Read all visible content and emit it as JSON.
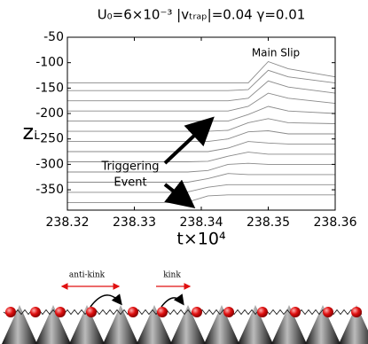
{
  "chart_data": {
    "type": "line",
    "title": "U₀=6×10⁻³   |vₜᵣₐₚ|=0.04   γ=0.01",
    "x_label": "t×10⁴",
    "y_label": "zᵢ",
    "annotations": [
      "Main Slip",
      "Triggering",
      "Event"
    ],
    "color": "#8a8a8a",
    "x": [
      238.32,
      238.335,
      238.338,
      238.341,
      238.344,
      238.347,
      238.35,
      238.353,
      238.36
    ],
    "series": [
      {
        "values": [
          -375,
          -375,
          -374,
          -362,
          -360,
          -360,
          -360,
          -360,
          -360
        ]
      },
      {
        "values": [
          -355,
          -355,
          -354,
          -345,
          -340,
          -340,
          -340,
          -340,
          -340
        ]
      },
      {
        "values": [
          -335,
          -335,
          -335,
          -328,
          -318,
          -320,
          -320,
          -320,
          -320
        ]
      },
      {
        "values": [
          -315,
          -315,
          -315,
          -312,
          -300,
          -298,
          -300,
          -300,
          -300
        ]
      },
      {
        "values": [
          -295,
          -295,
          -295,
          -294,
          -284,
          -276,
          -280,
          -280,
          -280
        ]
      },
      {
        "values": [
          -275,
          -275,
          -275,
          -275,
          -268,
          -255,
          -258,
          -260,
          -260
        ]
      },
      {
        "values": [
          -255,
          -255,
          -255,
          -255,
          -250,
          -236,
          -234,
          -240,
          -240
        ]
      },
      {
        "values": [
          -235,
          -235,
          -235,
          -235,
          -233,
          -218,
          -210,
          -218,
          -220
        ]
      },
      {
        "values": [
          -215,
          -215,
          -215,
          -215,
          -215,
          -202,
          -186,
          -195,
          -200
        ]
      },
      {
        "values": [
          -195,
          -195,
          -195,
          -195,
          -195,
          -186,
          -160,
          -170,
          -180
        ]
      },
      {
        "values": [
          -175,
          -175,
          -175,
          -175,
          -175,
          -170,
          -136,
          -148,
          -160
        ]
      },
      {
        "values": [
          -155,
          -155,
          -155,
          -155,
          -155,
          -153,
          -115,
          -128,
          -140
        ]
      },
      {
        "values": [
          -140,
          -140,
          -140,
          -140,
          -140,
          -140,
          -98,
          -112,
          -128
        ]
      }
    ],
    "xlim": [
      238.32,
      238.36
    ],
    "xticks": [
      238.32,
      238.33,
      238.34,
      238.35,
      238.36
    ],
    "ylim": [
      -390,
      -50
    ],
    "yticks": [
      -50,
      -100,
      -150,
      -200,
      -250,
      -300,
      -350
    ]
  },
  "diagram": {
    "anti_kink": "anti-kink",
    "kink": "kink"
  }
}
